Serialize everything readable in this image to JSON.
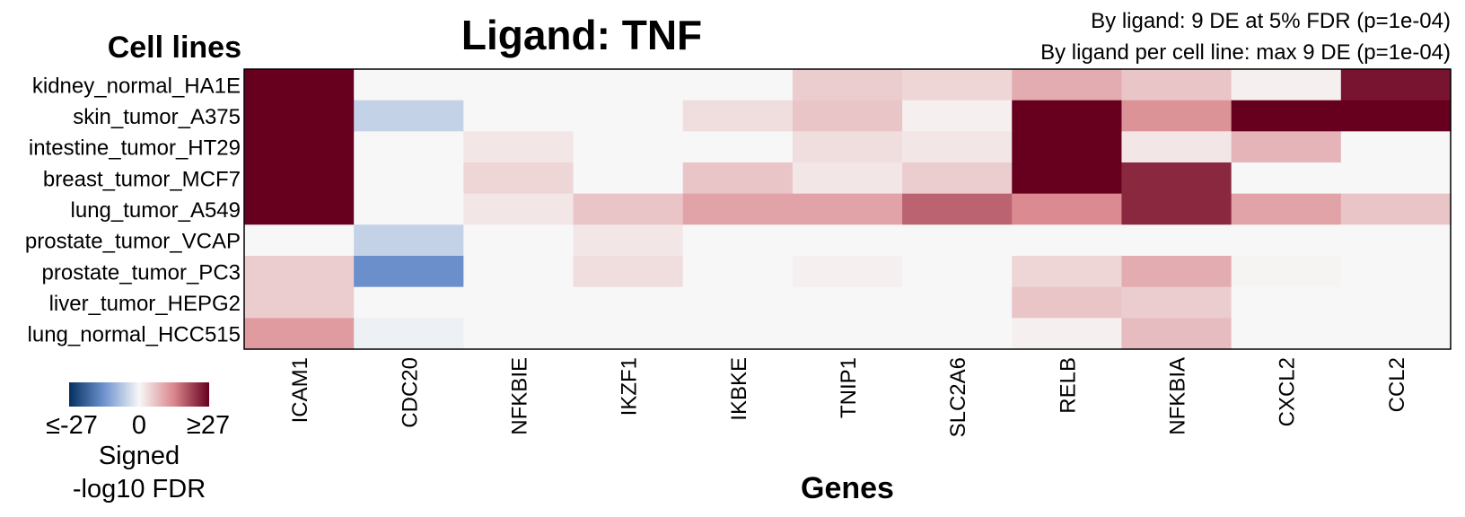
{
  "chart_data": {
    "type": "heatmap",
    "title": "Ligand: TNF",
    "annotations": [
      "By ligand: 9 DE at 5% FDR (p=1e-04)",
      "By ligand per cell line: max 9 DE (p=1e-04)"
    ],
    "ylabel": "Cell lines",
    "xlabel": "Genes",
    "rows": [
      "kidney_normal_HA1E",
      "skin_tumor_A375",
      "intestine_tumor_HT29",
      "breast_tumor_MCF7",
      "lung_tumor_A549",
      "prostate_tumor_VCAP",
      "prostate_tumor_PC3",
      "liver_tumor_HEPG2",
      "lung_normal_HCC515"
    ],
    "columns": [
      "ICAM1",
      "CDC20",
      "NFKBIE",
      "IKZF1",
      "IKBKE",
      "TNIP1",
      "SLC2A6",
      "RELB",
      "NFKBIA",
      "CXCL2",
      "CCL2"
    ],
    "values": [
      [
        27,
        0,
        0,
        0,
        0,
        5,
        4,
        9,
        6,
        1,
        25
      ],
      [
        27,
        -5,
        0,
        0,
        3,
        6,
        1,
        27,
        12,
        27,
        27
      ],
      [
        27,
        0,
        2,
        0,
        0,
        3,
        2,
        27,
        2,
        8,
        0
      ],
      [
        27,
        0,
        4,
        0,
        6,
        2,
        5,
        27,
        23,
        0,
        0
      ],
      [
        27,
        0,
        2,
        6,
        10,
        10,
        17,
        13,
        23,
        10,
        6
      ],
      [
        0,
        -5,
        0,
        2,
        0,
        0,
        0,
        0,
        0,
        0,
        0
      ],
      [
        5,
        -14,
        0,
        3,
        0,
        1,
        0,
        4,
        9,
        0.5,
        0
      ],
      [
        5,
        0,
        0,
        0,
        0,
        0,
        0,
        6,
        5,
        0,
        0
      ],
      [
        11,
        -1,
        0,
        0,
        0,
        0,
        0,
        1,
        7,
        0,
        0
      ]
    ],
    "color_scale": {
      "min": -27,
      "max": 27,
      "low_color": "#053061",
      "mid_color": "#f7f7f7",
      "high_color": "#67001f"
    },
    "legend": {
      "tick_labels": [
        "≤-27",
        "0",
        "≥27"
      ],
      "title_lines": [
        "Signed",
        "-log10 FDR"
      ],
      "placement": "bottom-left"
    }
  }
}
